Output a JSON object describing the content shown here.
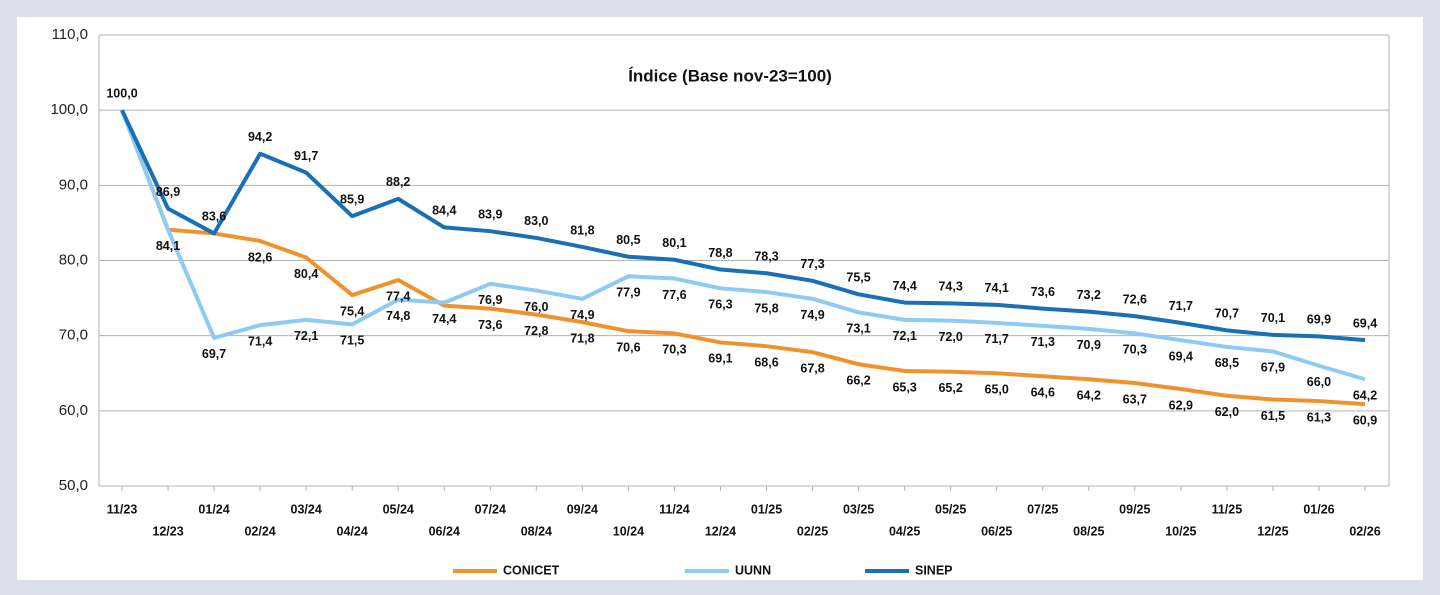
{
  "chart_data": {
    "type": "line",
    "title": "Índice (Base nov-23=100)",
    "categories": [
      "11/23",
      "12/23",
      "01/24",
      "02/24",
      "03/24",
      "04/24",
      "05/24",
      "06/24",
      "07/24",
      "08/24",
      "09/24",
      "10/24",
      "11/24",
      "12/24",
      "01/25",
      "02/25",
      "03/25",
      "04/25",
      "05/25",
      "06/25",
      "07/25",
      "08/25",
      "09/25",
      "10/25",
      "11/25",
      "12/25",
      "01/26",
      "02/26"
    ],
    "series": [
      {
        "name": "CONICET",
        "color": "#f0922b",
        "values": [
          100.0,
          84.1,
          83.6,
          82.6,
          80.4,
          75.4,
          77.4,
          74.0,
          73.6,
          72.8,
          71.8,
          70.6,
          70.3,
          69.1,
          68.6,
          67.8,
          66.2,
          65.3,
          65.2,
          65.0,
          64.6,
          64.2,
          63.7,
          62.9,
          62.0,
          61.5,
          61.3,
          60.9
        ],
        "value_labels": [
          null,
          "84,1",
          null,
          "82,6",
          "80,4",
          "75,4",
          "77,4",
          null,
          "73,6",
          "72,8",
          "71,8",
          "70,6",
          "70,3",
          "69,1",
          "68,6",
          "67,8",
          "66,2",
          "65,3",
          "65,2",
          "65,0",
          "64,6",
          "64,2",
          "63,7",
          "62,9",
          "62,0",
          "61,5",
          "61,3",
          "60,9"
        ]
      },
      {
        "name": "UUNN",
        "color": "#8ecbf2",
        "values": [
          100.0,
          84.1,
          69.7,
          71.4,
          72.1,
          71.5,
          74.8,
          74.4,
          76.9,
          76.0,
          74.9,
          77.9,
          77.6,
          76.3,
          75.8,
          74.9,
          73.1,
          72.1,
          72.0,
          71.7,
          71.3,
          70.9,
          70.3,
          69.4,
          68.5,
          67.9,
          66.0,
          64.2
        ],
        "value_labels": [
          null,
          null,
          "69,7",
          "71,4",
          "72,1",
          "71,5",
          "74,8",
          "74,4",
          "76,9",
          "76,0",
          "74,9",
          "77,9",
          "77,6",
          "76,3",
          "75,8",
          "74,9",
          "73,1",
          "72,1",
          "72,0",
          "71,7",
          "71,3",
          "70,9",
          "70,3",
          "69,4",
          "68,5",
          "67,9",
          "66,0",
          "64,2"
        ]
      },
      {
        "name": "SINEP",
        "color": "#1b6fb5",
        "values": [
          100.0,
          86.9,
          83.6,
          94.2,
          91.7,
          85.9,
          88.2,
          84.4,
          83.9,
          83.0,
          81.8,
          80.5,
          80.1,
          78.8,
          78.3,
          77.3,
          75.5,
          74.4,
          74.3,
          74.1,
          73.6,
          73.2,
          72.6,
          71.7,
          70.7,
          70.1,
          69.9,
          69.4
        ],
        "value_labels": [
          "100,0",
          "86,9",
          "83,6",
          "94,2",
          "91,7",
          "85,9",
          "88,2",
          "84,4",
          "83,9",
          "83,0",
          "81,8",
          "80,5",
          "80,1",
          "78,8",
          "78,3",
          "77,3",
          "75,5",
          "74,4",
          "74,3",
          "74,1",
          "73,6",
          "73,2",
          "72,6",
          "71,7",
          "70,7",
          "70,1",
          "69,9",
          "69,4"
        ]
      }
    ],
    "ylim": [
      50,
      110
    ],
    "yticks": [
      {
        "value": 50,
        "label": "50,0"
      },
      {
        "value": 60,
        "label": "60,0"
      },
      {
        "value": 70,
        "label": "70,0"
      },
      {
        "value": 80,
        "label": "80,0"
      },
      {
        "value": 90,
        "label": "90,0"
      },
      {
        "value": 100,
        "label": "100,0"
      },
      {
        "value": 110,
        "label": "110,0"
      }
    ],
    "grid": true,
    "legend": "bottom"
  }
}
